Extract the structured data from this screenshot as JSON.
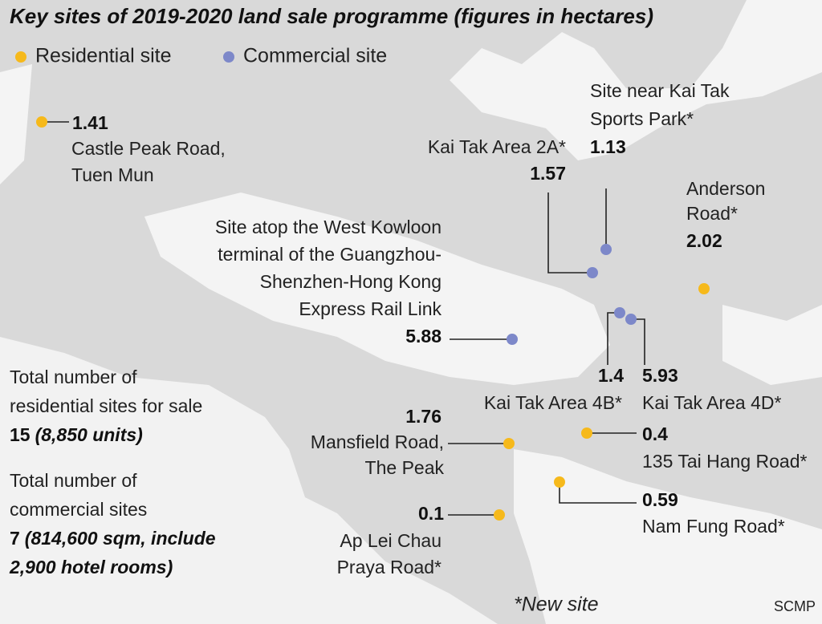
{
  "header": {
    "title": "Key sites of 2019-2020 land sale programme (figures in hectares)",
    "legend": [
      {
        "label": "Residential site",
        "color": "#f6b91b"
      },
      {
        "label": "Commercial site",
        "color": "#7d88c9"
      }
    ]
  },
  "sites": [
    {
      "name_lines": [
        "Castle Peak Road,",
        "Tuen Mun"
      ],
      "area": 1.41,
      "color": "#f6b91b"
    },
    {
      "name_lines": [
        "Kai Tak Area 2A*"
      ],
      "area": 1.57,
      "color": "#7d88c9"
    },
    {
      "name_lines": [
        "Site near Kai Tak",
        "Sports Park*"
      ],
      "area": 1.13,
      "color": "#7d88c9"
    },
    {
      "name_lines": [
        "Anderson",
        "Road*"
      ],
      "area": 2.02,
      "color": "#f6b91b"
    },
    {
      "name_lines": [
        "Site atop the West Kowloon",
        "terminal of the Guangzhou-",
        "Shenzhen-Hong Kong",
        "Express Rail Link"
      ],
      "area": 5.88,
      "color": "#7d88c9"
    },
    {
      "name_lines": [
        "Kai Tak Area 4B*"
      ],
      "area": 1.4,
      "color": "#7d88c9"
    },
    {
      "name_lines": [
        "Kai Tak Area 4D*"
      ],
      "area": 5.93,
      "color": "#7d88c9"
    },
    {
      "name_lines": [
        "Mansfield Road,",
        "The Peak"
      ],
      "area": 1.76,
      "color": "#f6b91b"
    },
    {
      "name_lines": [
        "135 Tai Hang Road*"
      ],
      "area": 0.4,
      "color": "#f6b91b"
    },
    {
      "name_lines": [
        "Nam Fung Road*"
      ],
      "area": 0.59,
      "color": "#f6b91b"
    },
    {
      "name_lines": [
        "Ap Lei Chau",
        "Praya Road*"
      ],
      "area": 0.1,
      "color": "#f6b91b"
    }
  ],
  "stats": [
    {
      "label_lines": [
        "Total number of",
        "residential sites for sale"
      ],
      "count": 15,
      "detail_lines": [
        "(8,850 units)"
      ]
    },
    {
      "label_lines": [
        "Total number of",
        "commercial sites"
      ],
      "count": 7,
      "detail_lines": [
        "(814,600 sqm, include",
        "2,900 hotel rooms)"
      ]
    }
  ],
  "footer": {
    "note": "*New site",
    "source": "SCMP"
  }
}
